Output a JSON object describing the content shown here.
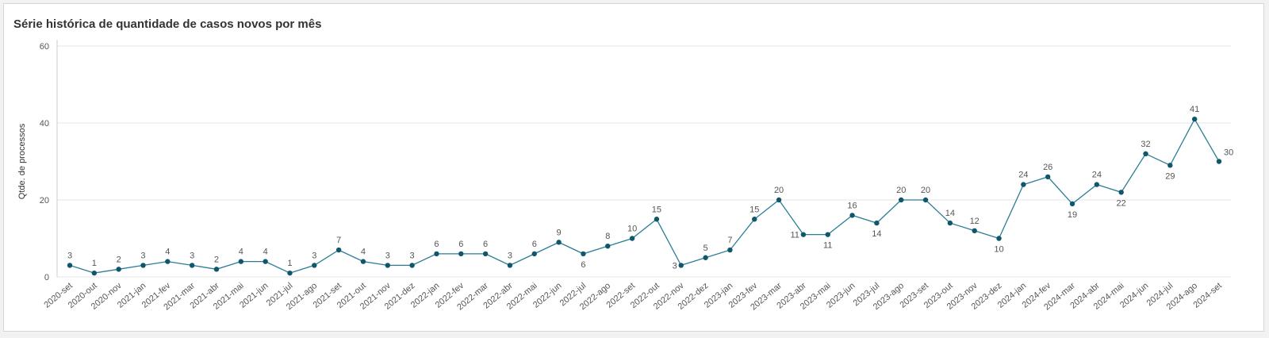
{
  "chart_data": {
    "type": "line",
    "title": "Série histórica de quantidade de casos novos por mês",
    "ylabel": "Qtde. de processos",
    "xlabel": "",
    "ylim": [
      0,
      60
    ],
    "yticks": [
      0,
      20,
      40,
      60
    ],
    "grid": true,
    "line_color": "#2a7d94",
    "point_color": "#10576b",
    "categories": [
      "2020-set",
      "2020-out",
      "2020-nov",
      "2021-jan",
      "2021-fev",
      "2021-mar",
      "2021-abr",
      "2021-mai",
      "2021-jun",
      "2021-jul",
      "2021-ago",
      "2021-set",
      "2021-out",
      "2021-nov",
      "2021-dez",
      "2022-jan",
      "2022-fev",
      "2022-mar",
      "2022-abr",
      "2022-mai",
      "2022-jun",
      "2022-jul",
      "2022-ago",
      "2022-set",
      "2022-out",
      "2022-nov",
      "2022-dez",
      "2023-jan",
      "2023-fev",
      "2023-mar",
      "2023-abr",
      "2023-mai",
      "2023-jun",
      "2023-jul",
      "2023-ago",
      "2023-set",
      "2023-out",
      "2023-nov",
      "2023-dez",
      "2024-jan",
      "2024-fev",
      "2024-mar",
      "2024-abr",
      "2024-mai",
      "2024-jun",
      "2024-jul",
      "2024-ago",
      "2024-set"
    ],
    "values": [
      3,
      1,
      2,
      3,
      4,
      3,
      2,
      4,
      4,
      1,
      3,
      7,
      4,
      3,
      3,
      6,
      6,
      6,
      3,
      6,
      9,
      6,
      8,
      10,
      15,
      3,
      5,
      7,
      15,
      20,
      11,
      11,
      16,
      14,
      20,
      20,
      14,
      12,
      10,
      24,
      26,
      19,
      24,
      22,
      32,
      29,
      41,
      30
    ],
    "label_position": [
      "above",
      "above",
      "above",
      "above",
      "above",
      "above",
      "above",
      "above",
      "above",
      "above",
      "above",
      "above",
      "above",
      "above",
      "above",
      "above",
      "above",
      "above",
      "above",
      "above",
      "above",
      "below",
      "above",
      "above",
      "above",
      "left",
      "above",
      "above",
      "above",
      "above",
      "left",
      "below",
      "above",
      "below",
      "above",
      "above",
      "above",
      "above",
      "below",
      "above",
      "above",
      "below",
      "above",
      "below",
      "above",
      "below",
      "above",
      "right"
    ]
  }
}
